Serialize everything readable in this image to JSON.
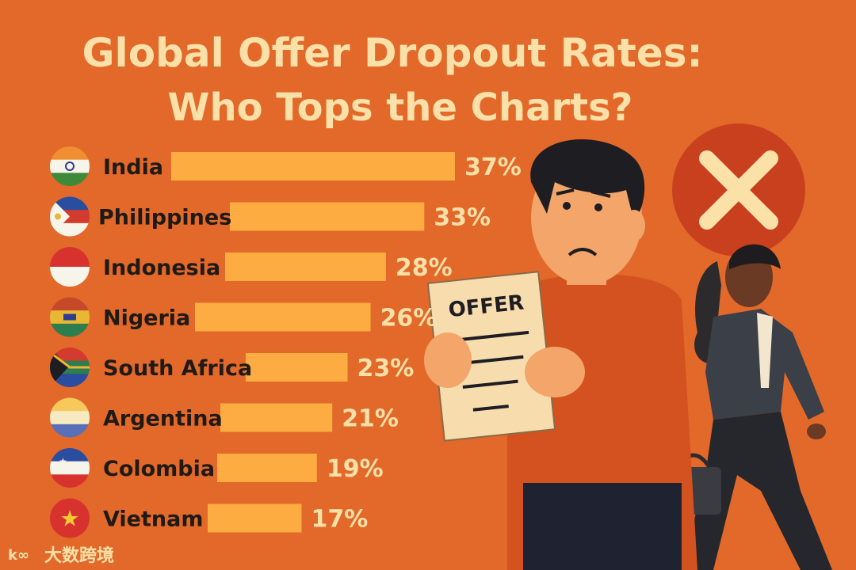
{
  "title_line1": "Global Offer Dropout Rates:",
  "title_line2": "Who Tops the Charts?",
  "offer_doc_label": "OFFER",
  "brand_logo_text": "大数跨境",
  "colors": {
    "background": "#e2692a",
    "bar": "#fcac40",
    "title": "#fbe0a8",
    "label": "#1f1a16",
    "value": "#fbe0a8",
    "reject_circle": "#c9401f"
  },
  "chart_data": {
    "type": "bar",
    "orientation": "horizontal",
    "categories": [
      "India",
      "Philippines",
      "Indonesia",
      "Nigeria",
      "South Africa",
      "Argentina",
      "Colombia",
      "Vietnam"
    ],
    "values": [
      37,
      33,
      28,
      26,
      23,
      21,
      19,
      17
    ],
    "value_labels": [
      "37%",
      "33%",
      "28%",
      "26%",
      "23%",
      "21%",
      "19%",
      "17%"
    ],
    "flag_icons": [
      "flag-india-icon",
      "flag-philippines-icon",
      "flag-indonesia-icon",
      "flag-nigeria-icon",
      "flag-south-africa-icon",
      "flag-argentina-icon",
      "flag-colombia-icon",
      "flag-vietnam-icon"
    ],
    "title": "Global Offer Dropout Rates: Who Tops the Charts?",
    "xlabel": "",
    "ylabel": "",
    "grid": false,
    "legend": "none"
  }
}
